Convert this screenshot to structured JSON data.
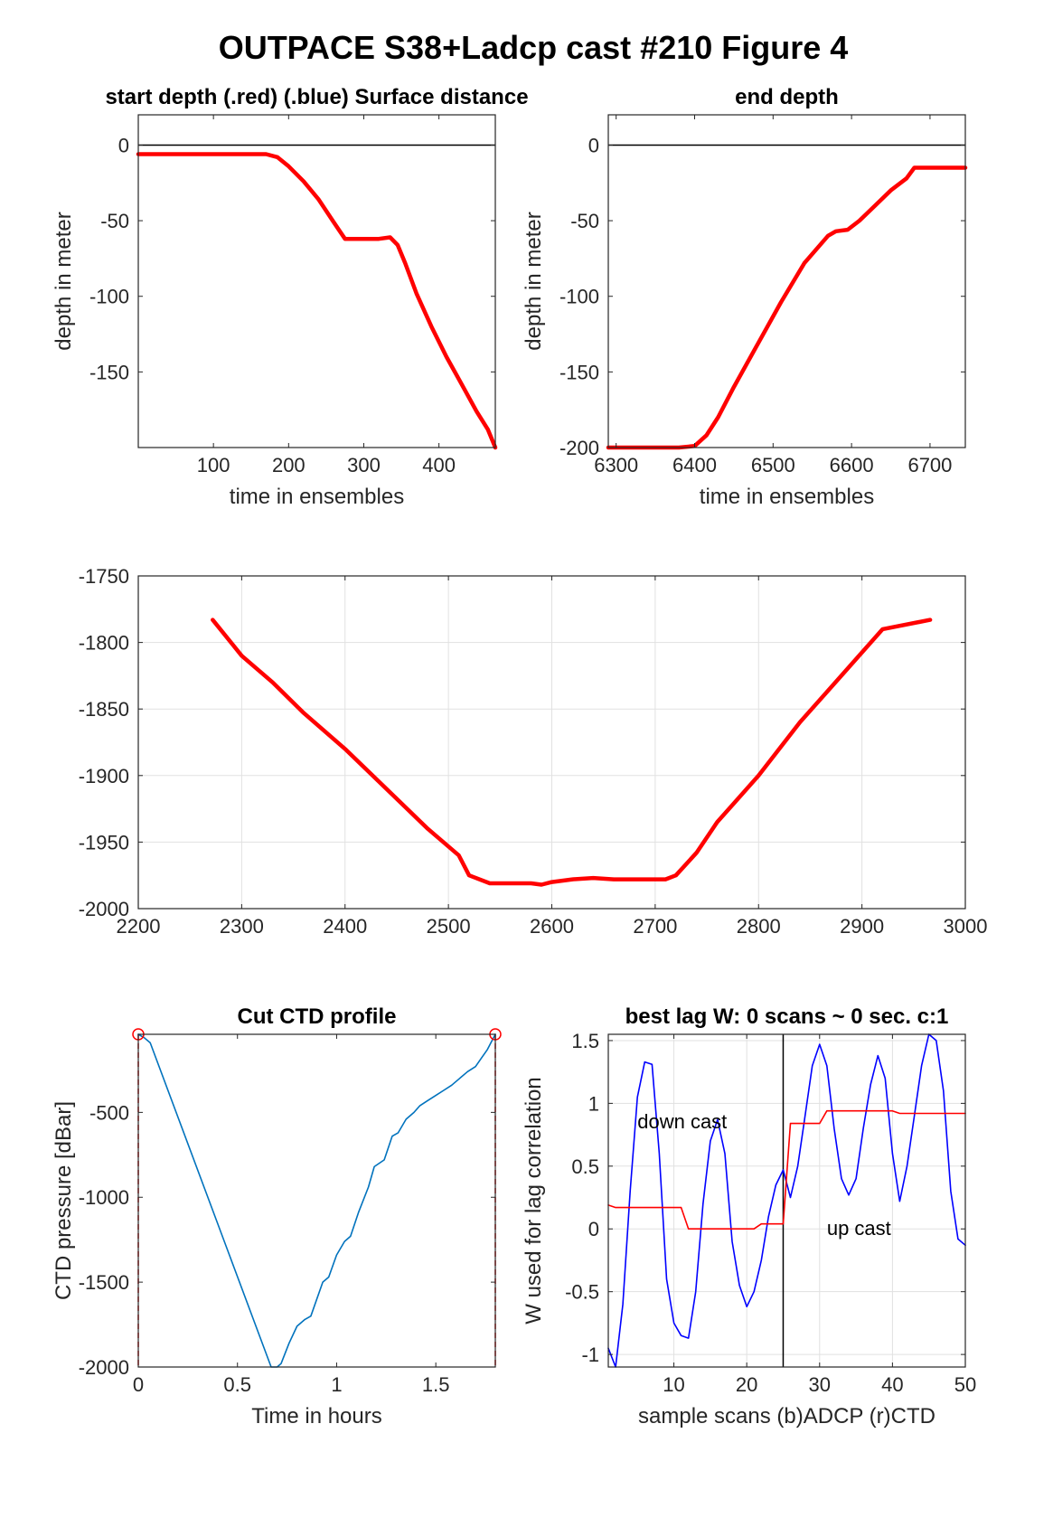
{
  "figure": {
    "title": "OUTPACE S38+Ladcp cast #210   Figure 4"
  },
  "chart_data": [
    {
      "id": "start",
      "type": "line",
      "title": "start depth (.red) (.blue) Surface distance",
      "xlabel": "time in ensembles",
      "ylabel": "depth in meter",
      "xlim": [
        0,
        475
      ],
      "ylim": [
        -200,
        20
      ],
      "xticks": [
        100,
        200,
        300,
        400
      ],
      "yticks": [
        0,
        -50,
        -100,
        -150
      ],
      "grid": false,
      "hline": 0,
      "series": [
        {
          "color": "#ff0000",
          "x": [
            0,
            50,
            100,
            150,
            170,
            185,
            200,
            220,
            240,
            260,
            275,
            300,
            320,
            335,
            345,
            355,
            370,
            390,
            410,
            430,
            450,
            465,
            475
          ],
          "y": [
            -6,
            -6,
            -6,
            -6,
            -6,
            -8,
            -14,
            -24,
            -36,
            -51,
            -62,
            -62,
            -62,
            -61,
            -66,
            -78,
            -98,
            -120,
            -140,
            -158,
            -176,
            -188,
            -200
          ]
        }
      ]
    },
    {
      "id": "end",
      "type": "line",
      "title": "end depth",
      "xlabel": "time in ensembles",
      "ylabel": "depth in meter",
      "xlim": [
        6290,
        6745
      ],
      "ylim": [
        -200,
        20
      ],
      "xticks": [
        6300,
        6400,
        6500,
        6600,
        6700
      ],
      "yticks": [
        0,
        -50,
        -100,
        -150,
        -200
      ],
      "grid": false,
      "hline": 0,
      "series": [
        {
          "color": "#ff0000",
          "x": [
            6290,
            6320,
            6350,
            6380,
            6400,
            6415,
            6430,
            6450,
            6480,
            6510,
            6540,
            6570,
            6580,
            6595,
            6610,
            6630,
            6650,
            6670,
            6680,
            6700,
            6745
          ],
          "y": [
            -200,
            -200,
            -200,
            -200,
            -199,
            -192,
            -180,
            -160,
            -132,
            -104,
            -78,
            -60,
            -57,
            -56,
            -50,
            -40,
            -30,
            -22,
            -15,
            -15,
            -15
          ]
        }
      ]
    },
    {
      "id": "mid",
      "type": "line",
      "title": "",
      "xlabel": "",
      "ylabel": "",
      "xlim": [
        2200,
        3000
      ],
      "ylim": [
        -2000,
        -1750
      ],
      "xticks": [
        2200,
        2300,
        2400,
        2500,
        2600,
        2700,
        2800,
        2900,
        3000
      ],
      "yticks": [
        -1750,
        -1800,
        -1850,
        -1900,
        -1950,
        -2000
      ],
      "grid": true,
      "series": [
        {
          "color": "#ff0000",
          "x": [
            2272,
            2300,
            2330,
            2360,
            2400,
            2440,
            2480,
            2510,
            2520,
            2540,
            2560,
            2580,
            2590,
            2600,
            2620,
            2640,
            2660,
            2680,
            2700,
            2710,
            2720,
            2740,
            2760,
            2800,
            2840,
            2880,
            2920,
            2966
          ],
          "y": [
            -1783,
            -1810,
            -1830,
            -1853,
            -1880,
            -1910,
            -1940,
            -1960,
            -1975,
            -1981,
            -1981,
            -1981,
            -1982,
            -1980,
            -1978,
            -1977,
            -1978,
            -1978,
            -1978,
            -1978,
            -1975,
            -1958,
            -1935,
            -1900,
            -1860,
            -1825,
            -1790,
            -1783
          ]
        }
      ]
    },
    {
      "id": "ctd",
      "type": "line",
      "title": "Cut CTD profile",
      "xlabel": "Time in hours",
      "ylabel": "CTD pressure [dBar]",
      "xlim": [
        0,
        1.8
      ],
      "ylim": [
        -2000,
        -40
      ],
      "xticks": [
        0,
        0.5,
        1,
        1.5
      ],
      "yticks": [
        -500,
        -1000,
        -1500,
        -2000
      ],
      "xtick_labels": [
        "0",
        "0.5",
        "1",
        "1.5"
      ],
      "grid": false,
      "vlines": [
        0,
        1.8
      ],
      "markers": [
        [
          0,
          -40
        ],
        [
          1.8,
          -40
        ]
      ],
      "series": [
        {
          "color": "#0072bd",
          "x": [
            0,
            0.03,
            0.06,
            0.67,
            0.7,
            0.72,
            0.76,
            0.8,
            0.84,
            0.87,
            0.93,
            0.96,
            1.0,
            1.04,
            1.07,
            1.11,
            1.16,
            1.19,
            1.24,
            1.28,
            1.31,
            1.35,
            1.39,
            1.42,
            1.46,
            1.5,
            1.54,
            1.58,
            1.62,
            1.66,
            1.7,
            1.73,
            1.76,
            1.8
          ],
          "y": [
            -40,
            -60,
            -90,
            -2000,
            -2000,
            -1980,
            -1860,
            -1760,
            -1720,
            -1700,
            -1500,
            -1470,
            -1340,
            -1260,
            -1230,
            -1090,
            -940,
            -820,
            -780,
            -640,
            -620,
            -540,
            -500,
            -460,
            -430,
            -400,
            -370,
            -340,
            -300,
            -260,
            -230,
            -180,
            -130,
            -40
          ]
        }
      ]
    },
    {
      "id": "lag",
      "type": "line",
      "title": "best lag W: 0 scans ~ 0 sec.  c:1",
      "xlabel": "sample scans (b)ADCP (r)CTD",
      "ylabel": "W used for lag correlation",
      "xlim": [
        1,
        50
      ],
      "ylim": [
        -1.1,
        1.55
      ],
      "xticks": [
        10,
        20,
        30,
        40,
        50
      ],
      "yticks": [
        1.5,
        1,
        0.5,
        0,
        -0.5,
        -1
      ],
      "grid": true,
      "vline": 25,
      "annotations": [
        {
          "text": "down cast",
          "x": 5,
          "y": 0.8
        },
        {
          "text": "up cast",
          "x": 31,
          "y": -0.05
        }
      ],
      "series": [
        {
          "name": "ADCP",
          "color": "#0000ff",
          "x": [
            1,
            2,
            3,
            4,
            5,
            6,
            7,
            8,
            9,
            10,
            11,
            12,
            13,
            14,
            15,
            16,
            17,
            18,
            19,
            20,
            21,
            22,
            23,
            24,
            25,
            26,
            27,
            28,
            29,
            30,
            31,
            32,
            33,
            34,
            35,
            36,
            37,
            38,
            39,
            40,
            41,
            42,
            43,
            44,
            45,
            46,
            47,
            48,
            49,
            50
          ],
          "y": [
            -0.95,
            -1.1,
            -0.6,
            0.3,
            1.05,
            1.33,
            1.31,
            0.6,
            -0.4,
            -0.75,
            -0.85,
            -0.87,
            -0.5,
            0.2,
            0.7,
            0.87,
            0.6,
            -0.1,
            -0.45,
            -0.62,
            -0.5,
            -0.25,
            0.1,
            0.35,
            0.47,
            0.25,
            0.5,
            0.9,
            1.3,
            1.47,
            1.3,
            0.8,
            0.4,
            0.27,
            0.4,
            0.8,
            1.15,
            1.38,
            1.2,
            0.6,
            0.22,
            0.5,
            0.9,
            1.3,
            1.55,
            1.5,
            1.1,
            0.3,
            -0.08,
            -0.13
          ]
        },
        {
          "name": "CTD",
          "color": "#ff0000",
          "x": [
            1,
            2,
            3,
            4,
            5,
            6,
            7,
            8,
            9,
            10,
            11,
            12,
            13,
            14,
            15,
            16,
            17,
            18,
            19,
            20,
            21,
            22,
            23,
            24,
            25,
            26,
            27,
            28,
            29,
            30,
            31,
            32,
            33,
            34,
            35,
            36,
            37,
            38,
            39,
            40,
            41,
            42,
            43,
            44,
            45,
            46,
            47,
            48,
            49,
            50
          ],
          "y": [
            0.19,
            0.17,
            0.17,
            0.17,
            0.17,
            0.17,
            0.17,
            0.17,
            0.17,
            0.17,
            0.17,
            0.0,
            0.0,
            0.0,
            0.0,
            0.0,
            0.0,
            0.0,
            0.0,
            0.0,
            0.0,
            0.04,
            0.04,
            0.04,
            0.04,
            0.84,
            0.84,
            0.84,
            0.84,
            0.84,
            0.94,
            0.94,
            0.94,
            0.94,
            0.94,
            0.94,
            0.94,
            0.94,
            0.94,
            0.94,
            0.92,
            0.92,
            0.92,
            0.92,
            0.92,
            0.92,
            0.92,
            0.92,
            0.92,
            0.92
          ]
        }
      ]
    }
  ]
}
